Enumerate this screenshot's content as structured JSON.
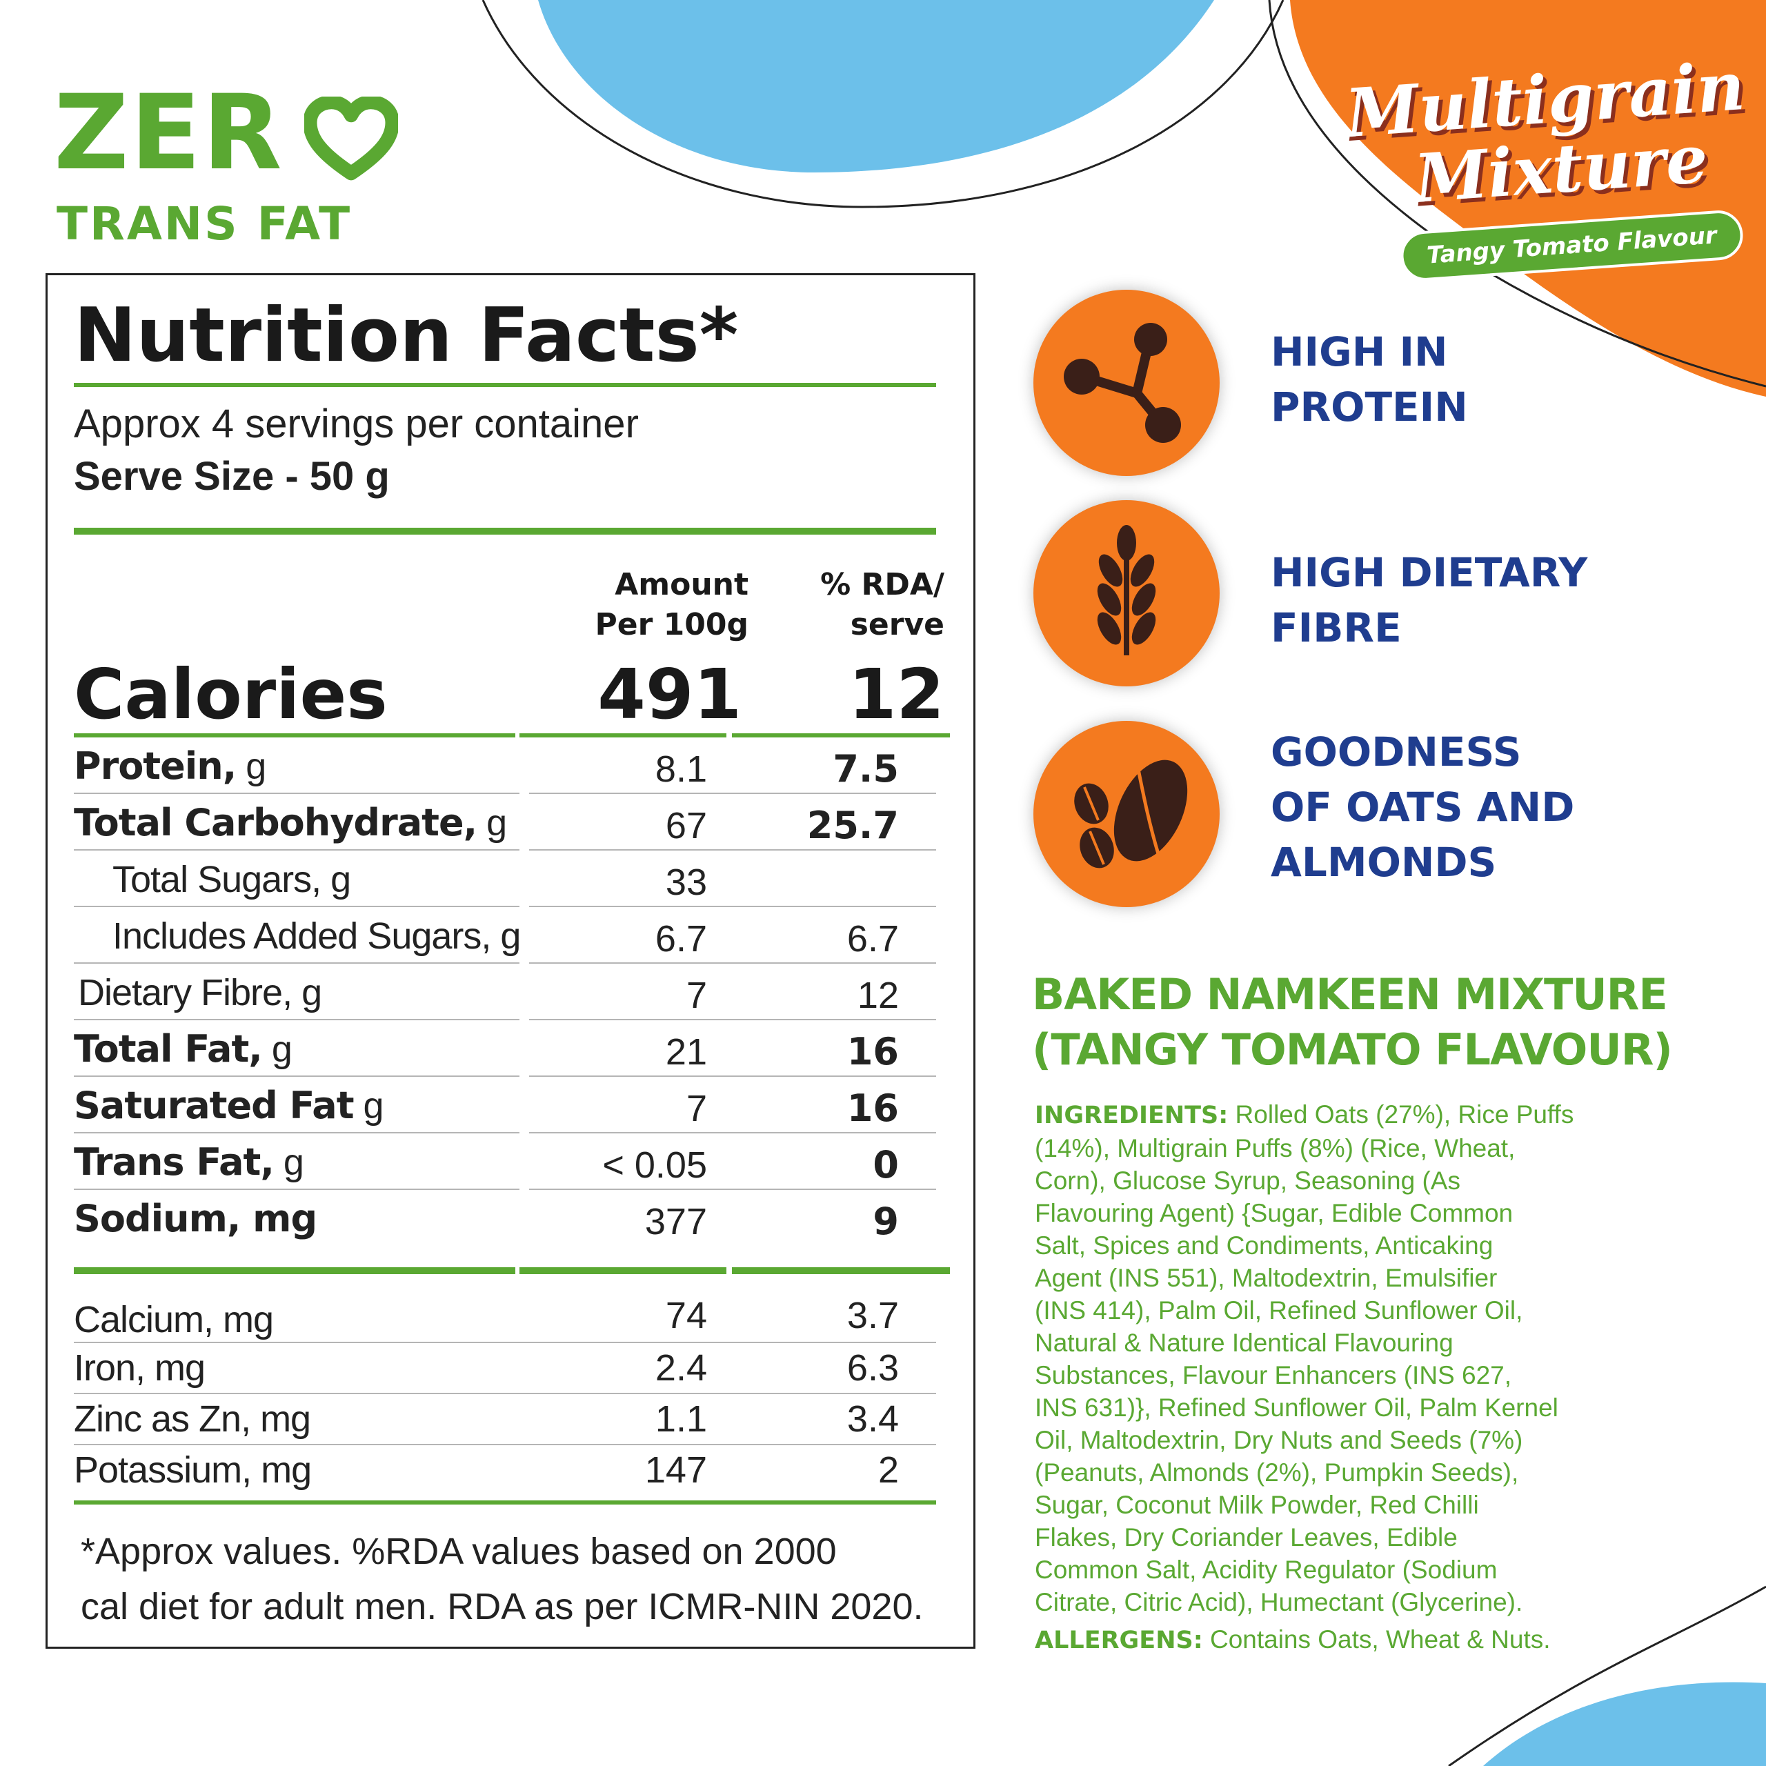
{
  "badge": {
    "zero": "ZER",
    "subtitle": "TRANS FAT"
  },
  "product_title": {
    "line1": "Multigrain",
    "line2": "Mixture",
    "flavour": "Tangy Tomato Flavour"
  },
  "nutrition": {
    "title": "Nutrition Facts*",
    "servings": "Approx 4 servings per container",
    "serve_size": "Serve Size - 50 g",
    "col_amount_1": "Amount",
    "col_amount_2": "Per 100g",
    "col_rda_1": "% RDA/",
    "col_rda_2": "serve",
    "calories_label": "Calories",
    "calories_amount": "491",
    "calories_rda": "12",
    "rows": [
      {
        "label": "Protein,",
        "unit": " g",
        "amount": "8.1",
        "rda": "7.5"
      },
      {
        "label": "Total Carbohydrate,",
        "unit": " g",
        "amount": "67",
        "rda": "25.7"
      },
      {
        "label": "Total Sugars, g",
        "unit": "",
        "amount": "33",
        "rda": ""
      },
      {
        "label": "Includes Added Sugars, g",
        "unit": "",
        "amount": "6.7",
        "rda": "6.7"
      },
      {
        "label": "Dietary Fibre, g",
        "unit": "",
        "amount": "7",
        "rda": "12"
      },
      {
        "label": "Total Fat,",
        "unit": " g",
        "amount": "21",
        "rda": "16"
      },
      {
        "label": "Saturated Fat",
        "unit": " g",
        "amount": "7",
        "rda": "16"
      },
      {
        "label": "Trans Fat,",
        "unit": " g",
        "amount": "< 0.05",
        "rda": "0"
      },
      {
        "label": "Sodium, mg",
        "unit": "",
        "amount": "377",
        "rda": "9"
      }
    ],
    "minerals": [
      {
        "label": "Calcium, mg",
        "amount": "74",
        "rda": "3.7"
      },
      {
        "label": "Iron, mg",
        "amount": "2.4",
        "rda": "6.3"
      },
      {
        "label": "Zinc as Zn, mg",
        "amount": "1.1",
        "rda": "3.4"
      },
      {
        "label": "Potassium, mg",
        "amount": "147",
        "rda": "2"
      }
    ],
    "footnote_1": "*Approx values. %RDA values based on 2000",
    "footnote_2": "cal diet for adult men. RDA as per ICMR-NIN 2020."
  },
  "benefits": [
    {
      "icon": "molecule-icon",
      "line1": "HIGH IN",
      "line2": "PROTEIN",
      "line3": ""
    },
    {
      "icon": "wheat-icon",
      "line1": "HIGH DIETARY",
      "line2": "FIBRE",
      "line3": ""
    },
    {
      "icon": "almond-coffee-bean-icon",
      "line1": "GOODNESS",
      "line2": "OF OATS AND",
      "line3": "ALMONDS"
    }
  ],
  "product": {
    "name_line1": "BAKED NAMKEEN MIXTURE",
    "name_line2": "(TANGY TOMATO FLAVOUR)"
  },
  "ingredients": {
    "label": "INGREDIENTS:",
    "lines": [
      " Rolled Oats (27%), Rice Puffs",
      "(14%), Multigrain Puffs (8%) (Rice, Wheat,",
      "Corn), Glucose Syrup, Seasoning (As",
      "Flavouring Agent) {Sugar, Edible Common",
      "Salt, Spices and Condiments, Anticaking",
      "Agent (INS 551), Maltodextrin, Emulsifier",
      "(INS 414), Palm Oil, Refined Sunflower Oil,",
      "Natural & Nature Identical Flavouring",
      "Substances, Flavour Enhancers (INS 627,",
      "INS 631)}, Refined Sunflower Oil, Palm Kernel",
      "Oil, Maltodextrin, Dry Nuts and Seeds (7%)",
      "(Peanuts, Almonds (2%), Pumpkin Seeds),",
      "Sugar, Coconut Milk Powder, Red Chilli",
      "Flakes, Dry Coriander Leaves, Edible",
      "Common Salt, Acidity Regulator (Sodium",
      "Citrate, Citric Acid), Humectant (Glycerine)."
    ],
    "allergens_label": "ALLERGENS:",
    "allergens_text": " Contains Oats, Wheat & Nuts."
  },
  "colors": {
    "green": "#5aa832",
    "orange": "#f47a1f",
    "blue_text": "#1f3d8f",
    "sky": "#6cc0ea"
  }
}
